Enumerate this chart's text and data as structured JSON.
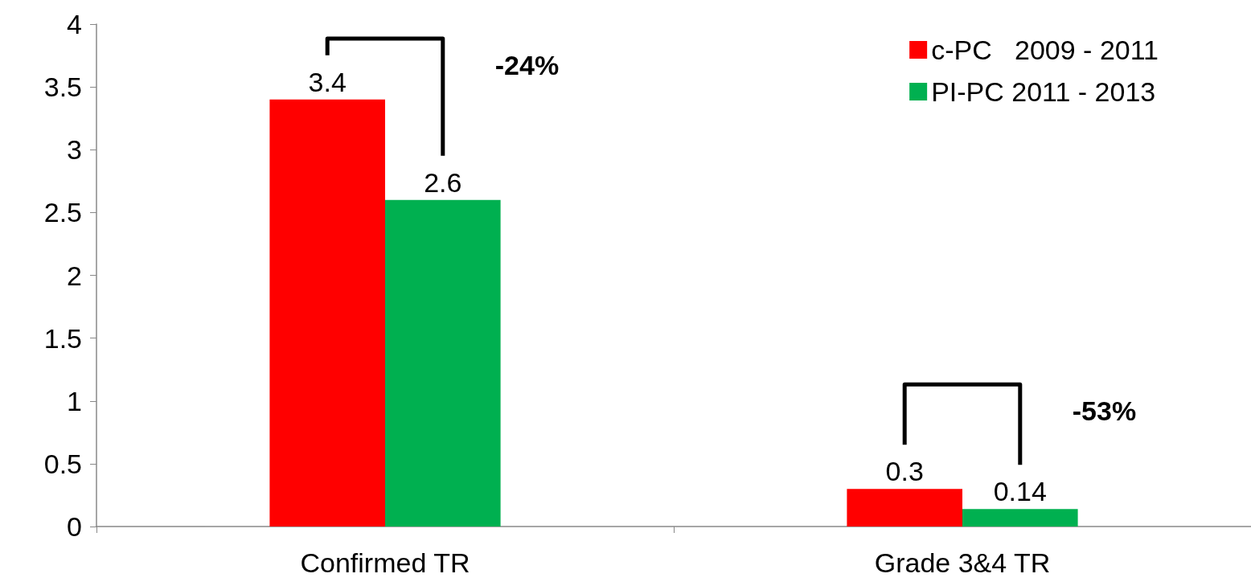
{
  "chart_data": {
    "type": "bar",
    "categories": [
      "Confirmed TR",
      "Grade 3&4 TR"
    ],
    "series": [
      {
        "name": "c-PC   2009 - 2011",
        "color": "#ff0000",
        "values": [
          3.4,
          0.3
        ]
      },
      {
        "name": "PI-PC 2011 - 2013",
        "color": "#00b050",
        "values": [
          2.6,
          0.14
        ]
      }
    ],
    "ylim": [
      0,
      4
    ],
    "yticks": [
      0,
      0.5,
      1,
      1.5,
      2,
      2.5,
      3,
      3.5,
      4
    ],
    "grid": false,
    "legend": "top right",
    "data_labels": true,
    "annotations": [
      "-24%",
      "-53%"
    ]
  }
}
